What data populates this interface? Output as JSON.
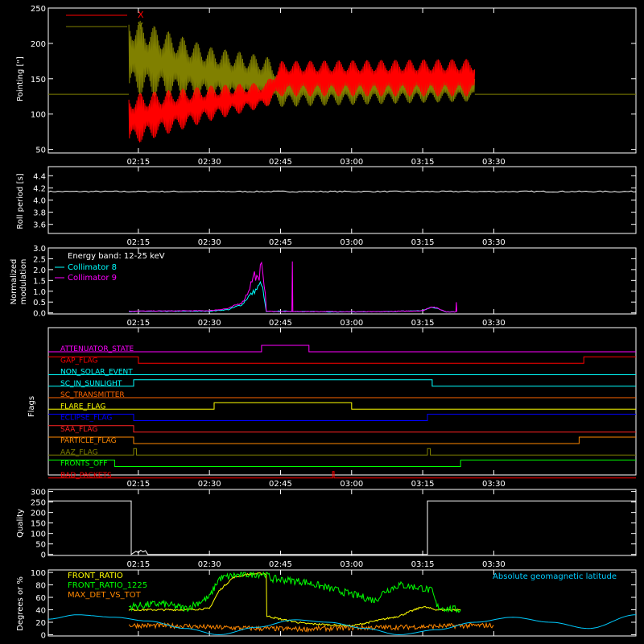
{
  "time_axis": {
    "tick_labels": [
      "02:15",
      "02:30",
      "02:45",
      "03:00",
      "03:15",
      "03:30"
    ],
    "tick_minutes": [
      135,
      150,
      165,
      180,
      195,
      210
    ],
    "xlim_minutes": [
      116,
      240
    ]
  },
  "panels": {
    "pointing": {
      "ylabel": "Pointing [\"]",
      "ylim": [
        45,
        250
      ],
      "yticks": [
        50,
        100,
        150,
        200,
        250
      ],
      "legend": [
        {
          "name": "X",
          "color": "#ff0000"
        },
        {
          "name": "Y",
          "color": "#808000"
        }
      ],
      "chart_data": {
        "type": "line",
        "baseline_value": 128,
        "active_window": [
          133,
          206
        ],
        "series": [
          {
            "name": "X",
            "color": "#ff0000",
            "envelope": [
              {
                "t": 133,
                "min": 55,
                "max": 128
              },
              {
                "t": 150,
                "min": 90,
                "max": 140
              },
              {
                "t": 162,
                "min": 110,
                "max": 145
              },
              {
                "t": 165,
                "min": 125,
                "max": 175
              },
              {
                "t": 206,
                "min": 125,
                "max": 178
              }
            ]
          },
          {
            "name": "Y",
            "color": "#808000",
            "envelope": [
              {
                "t": 133,
                "min": 128,
                "max": 238
              },
              {
                "t": 150,
                "min": 118,
                "max": 195
              },
              {
                "t": 162,
                "min": 112,
                "max": 182
              },
              {
                "t": 165,
                "min": 110,
                "max": 165
              },
              {
                "t": 206,
                "min": 118,
                "max": 162
              }
            ]
          }
        ]
      }
    },
    "roll": {
      "ylabel": "Roll period [s]",
      "ylim": [
        3.45,
        4.55
      ],
      "yticks": [
        3.6,
        3.8,
        4.0,
        4.2,
        4.4
      ],
      "chart_data": {
        "type": "line",
        "series": [
          {
            "name": "",
            "color": "#ffffff",
            "x": [
              116,
              240
            ],
            "y": [
              4.14,
              4.14
            ]
          }
        ]
      }
    },
    "modulation": {
      "ylabel_lines": [
        "Normalized",
        "modulation"
      ],
      "ylim": [
        -0.05,
        3.0
      ],
      "yticks": [
        0.0,
        0.5,
        1.0,
        1.5,
        2.0,
        2.5,
        3.0
      ],
      "legend": [
        {
          "name": "Energy band: 12-25 keV",
          "color": "#ffffff",
          "line_color": "#000000"
        },
        {
          "name": "Collimator 8",
          "color": "#00ffff",
          "line_color": "#00ffff"
        },
        {
          "name": "Collimator 9",
          "color": "#ff00ff",
          "line_color": "#ff00ff"
        }
      ],
      "chart_data": {
        "type": "line",
        "series": [
          {
            "name": "Collimator 8",
            "color": "#00ffff",
            "x": [
              133,
              150,
              154,
              157,
              158,
              160,
              161,
              162,
              165,
              175,
              185,
              195,
              197,
              200,
              202
            ],
            "y": [
              0.07,
              0.08,
              0.15,
              0.4,
              0.7,
              1.1,
              1.4,
              0.06,
              0.08,
              0.05,
              0.05,
              0.1,
              0.28,
              0.05,
              0.05
            ]
          },
          {
            "name": "Collimator 9",
            "color": "#ff00ff",
            "x": [
              133,
              150,
              154,
              157,
              158,
              159.5,
              160.5,
              161,
              161.8,
              162,
              165,
              167.4,
              167.5,
              167.6,
              175,
              185,
              195,
              197,
              200,
              202,
              202.1,
              202.2
            ],
            "y": [
              0.08,
              0.1,
              0.2,
              0.5,
              0.9,
              1.8,
              1.4,
              2.6,
              0.8,
              0.08,
              0.06,
              0.06,
              2.6,
              0.06,
              0.06,
              0.05,
              0.1,
              0.3,
              0.05,
              0.05,
              0.55,
              0.05
            ]
          }
        ]
      }
    },
    "flags": {
      "ylabel": "Flags",
      "chart_data": {
        "type": "line",
        "flags": [
          {
            "name": "ATTENUATOR_STATE",
            "color": "#ff00ff",
            "segments": [
              [
                116,
                161,
                0
              ],
              [
                161,
                171,
                1
              ],
              [
                171,
                240,
                0
              ]
            ]
          },
          {
            "name": "GAP_FLAG",
            "color": "#ff0000",
            "segments": [
              [
                116,
                135,
                1
              ],
              [
                135,
                229,
                0
              ],
              [
                229,
                240,
                1
              ]
            ]
          },
          {
            "name": "NON_SOLAR_EVENT",
            "color": "#00ffff",
            "segments": [
              [
                116,
                240,
                0
              ]
            ]
          },
          {
            "name": "SC_IN_SUNLIGHT",
            "color": "#00ffff",
            "segments": [
              [
                116,
                134,
                0
              ],
              [
                134,
                197,
                1
              ],
              [
                197,
                240,
                0
              ]
            ]
          },
          {
            "name": "SC_TRANSMITTER",
            "color": "#ff6600",
            "segments": [
              [
                116,
                240,
                0
              ]
            ]
          },
          {
            "name": "FLARE_FLAG",
            "color": "#ffff00",
            "segments": [
              [
                116,
                151,
                0
              ],
              [
                151,
                180,
                1
              ],
              [
                180,
                240,
                0
              ]
            ]
          },
          {
            "name": "ECLIPSE_FLAG",
            "color": "#0000ff",
            "segments": [
              [
                116,
                134,
                1
              ],
              [
                134,
                196,
                0
              ],
              [
                196,
                240,
                1
              ]
            ]
          },
          {
            "name": "SAA_FLAG",
            "color": "#ff2222",
            "segments": [
              [
                116,
                134,
                1
              ],
              [
                134,
                240,
                0
              ]
            ]
          },
          {
            "name": "PARTICLE_FLAG",
            "color": "#ff8800",
            "segments": [
              [
                116,
                134,
                1
              ],
              [
                134,
                228,
                0
              ],
              [
                228,
                240,
                1
              ]
            ]
          },
          {
            "name": "AAZ_FLAG",
            "color": "#808000",
            "segments": [
              [
                116,
                134,
                0
              ],
              [
                134,
                134.6,
                1
              ],
              [
                134.6,
                196,
                0
              ],
              [
                196,
                196.6,
                1
              ],
              [
                196.6,
                240,
                0
              ]
            ]
          },
          {
            "name": "FRONTS_OFF",
            "color": "#00ff00",
            "segments": [
              [
                116,
                130,
                1
              ],
              [
                130,
                203,
                0
              ],
              [
                203,
                240,
                1
              ]
            ]
          },
          {
            "name": "BAD_PACKETS",
            "color": "#ff0000",
            "segments": [
              [
                116,
                176,
                0
              ],
              [
                176,
                176.3,
                1
              ],
              [
                176.3,
                240,
                0
              ]
            ]
          }
        ]
      }
    },
    "quality": {
      "ylabel": "Quality",
      "ylim": [
        -5,
        310
      ],
      "yticks": [
        0,
        50,
        100,
        150,
        200,
        250,
        300
      ],
      "chart_data": {
        "type": "line",
        "series": [
          {
            "name": "",
            "color": "#ffffff",
            "x": [
              116,
              133.5,
              133.5,
              134.5,
              135,
              135.5,
              136,
              136.5,
              137,
              196,
              196,
              240
            ],
            "y": [
              255,
              255,
              0,
              15,
              8,
              20,
              12,
              18,
              0,
              0,
              255,
              255
            ]
          }
        ]
      }
    },
    "bottom": {
      "ylabel": "Degrees or %",
      "ylim": [
        -2,
        104
      ],
      "yticks": [
        0,
        20,
        40,
        60,
        80,
        100
      ],
      "legend": [
        {
          "name": "FRONT_RATIO",
          "color": "#ffff00"
        },
        {
          "name": "FRONT_RATIO_1225",
          "color": "#00ff00"
        },
        {
          "name": "MAX_DET_VS_TOT",
          "color": "#ff8800"
        }
      ],
      "annotation": {
        "text": "Absolute geomagnetic latitude",
        "color": "#00ccff"
      },
      "chart_data": {
        "type": "line",
        "series": [
          {
            "name": "FRONT_RATIO",
            "color": "#ffff00",
            "x": [
              133,
              145,
              150,
              152,
              155,
              158,
              160,
              162,
              162.1,
              165,
              170,
              180,
              190,
              195,
              198,
              200,
              203
            ],
            "y": [
              40,
              40,
              42,
              70,
              92,
              97,
              98,
              98,
              30,
              25,
              18,
              14,
              30,
              45,
              40,
              40,
              40
            ]
          },
          {
            "name": "FRONT_RATIO_1225",
            "color": "#00ff00",
            "x": [
              133,
              140,
              145,
              150,
              152,
              155,
              158,
              162,
              163,
              170,
              180,
              185,
              187,
              190,
              195,
              197,
              198,
              200,
              203
            ],
            "y": [
              45,
              50,
              42,
              60,
              90,
              95,
              97,
              98,
              90,
              85,
              65,
              55,
              70,
              80,
              75,
              70,
              45,
              42,
              40
            ]
          },
          {
            "name": "MAX_DET_VS_TOT",
            "color": "#ff8800",
            "x": [
              133,
              145,
              150,
              160,
              170,
              180,
              190,
              200,
              210
            ],
            "y": [
              15,
              14,
              12,
              10,
              9,
              11,
              12,
              14,
              15
            ]
          },
          {
            "name": "Absolute geomagnetic latitude",
            "color": "#00ccff",
            "x": [
              116,
              122,
              130,
              137,
              145,
              152,
              160,
              168,
              175,
              183,
              190,
              198,
              206,
              214,
              222,
              230,
              240
            ],
            "y": [
              25,
              32,
              28,
              22,
              10,
              0,
              12,
              24,
              20,
              10,
              0,
              8,
              20,
              28,
              20,
              10,
              32
            ]
          }
        ]
      }
    }
  }
}
